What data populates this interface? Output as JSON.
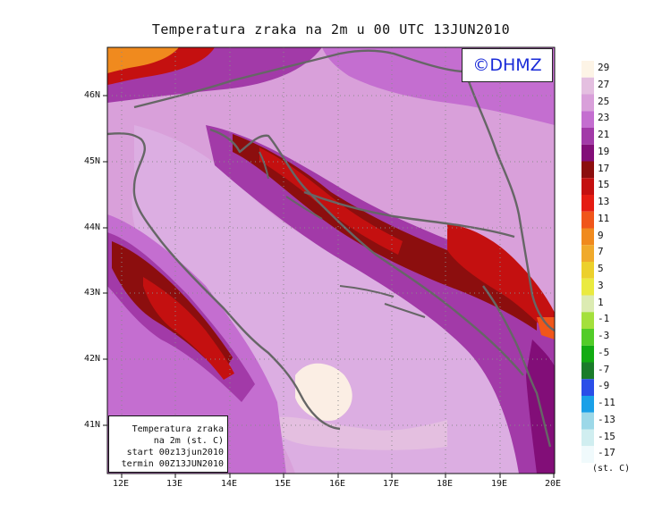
{
  "title": "Temperatura zraka na 2m u 00 UTC 13JUN2010",
  "logo": "©DHMZ",
  "infobox": {
    "line1": "Temperatura zraka",
    "line2": "na 2m (st. C)",
    "line3": "start 00z13jun2010",
    "line4": "termin 00Z13JUN2010"
  },
  "lon_labels": [
    "12E",
    "13E",
    "14E",
    "15E",
    "16E",
    "17E",
    "18E",
    "19E",
    "20E"
  ],
  "lat_labels": [
    "46N",
    "45N",
    "44N",
    "43N",
    "42N",
    "41N"
  ],
  "colorbar": {
    "labels": [
      "29",
      "27",
      "25",
      "23",
      "21",
      "19",
      "17",
      "15",
      "13",
      "11",
      "9",
      "7",
      "5",
      "3",
      "1",
      "-1",
      "-3",
      "-5",
      "-7",
      "-9",
      "-11",
      "-13",
      "-15",
      "-17"
    ],
    "colors": [
      "#fdf4e6",
      "#e4bfe0",
      "#d9a0da",
      "#c46ed0",
      "#a23aa8",
      "#820e78",
      "#8c0e0e",
      "#c41010",
      "#e51c12",
      "#f0561a",
      "#f08a1e",
      "#f0aa2c",
      "#ecd02c",
      "#eaea40",
      "#dcebb2",
      "#a4e03c",
      "#52cc28",
      "#12ab12",
      "#1a7c2a",
      "#2a4ee8",
      "#1aa0e8",
      "#9cd8e8",
      "#d0eef0",
      "#f0fafc"
    ],
    "unit": "(st. C)"
  }
}
